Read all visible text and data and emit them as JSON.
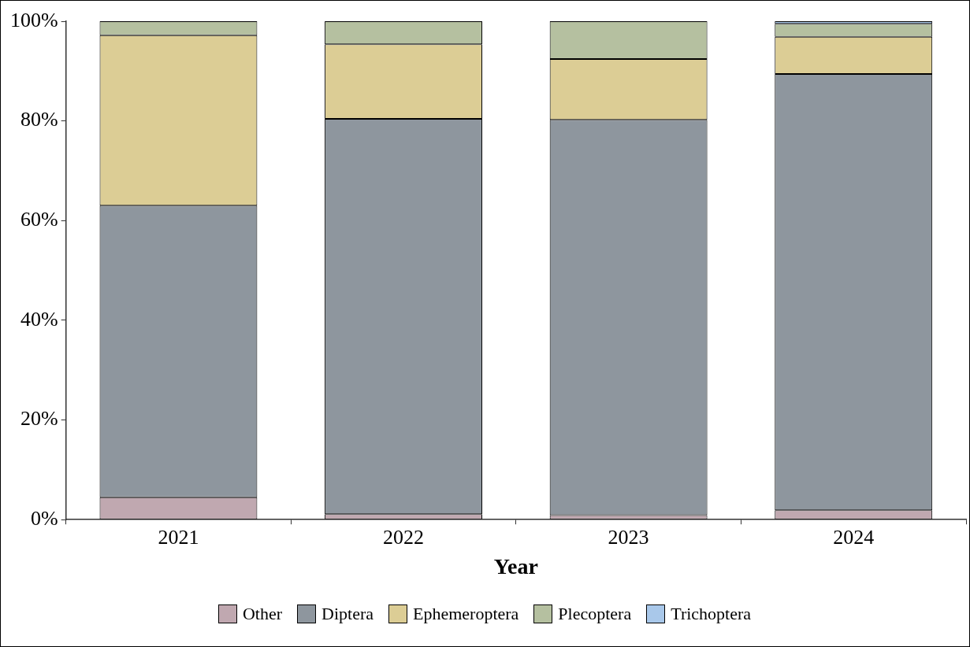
{
  "chart_data": {
    "type": "bar",
    "stacked": true,
    "xlabel": "Year",
    "categories": [
      "2021",
      "2022",
      "2023",
      "2024"
    ],
    "series": [
      {
        "name": "Other",
        "color": "#c0a8b0",
        "values": [
          4.5,
          1.1,
          0.9,
          1.9
        ]
      },
      {
        "name": "Diptera",
        "color": "#8e969e",
        "values": [
          58.5,
          79.3,
          79.3,
          87.5
        ]
      },
      {
        "name": "Ephemeroptera",
        "color": "#dccd95",
        "values": [
          34.2,
          15.0,
          12.2,
          7.5
        ]
      },
      {
        "name": "Plecoptera",
        "color": "#b5c0a0",
        "values": [
          2.8,
          4.6,
          7.6,
          2.6
        ]
      },
      {
        "name": "Trichoptera",
        "color": "#a9c8ea",
        "values": [
          0,
          0,
          0,
          0.5
        ]
      }
    ],
    "ylim": [
      0,
      100
    ],
    "yticks": [
      {
        "value": 0,
        "label": "0%"
      },
      {
        "value": 20,
        "label": "20%"
      },
      {
        "value": 40,
        "label": "40%"
      },
      {
        "value": 60,
        "label": "60%"
      },
      {
        "value": 80,
        "label": "80%"
      },
      {
        "value": 100,
        "label": "100%"
      }
    ],
    "grid": false,
    "legend": "bottom"
  }
}
